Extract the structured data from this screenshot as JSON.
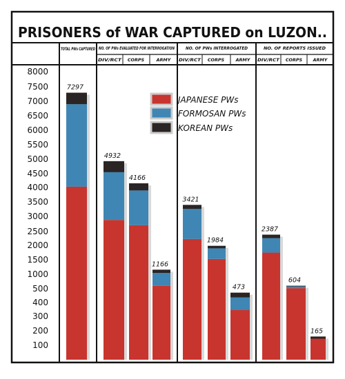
{
  "chart_data": {
    "type": "bar",
    "title": "PRISONERS of WAR CAPTURED on LUZON..",
    "y_ticks": [
      "8000",
      "7500",
      "7000",
      "6500",
      "6000",
      "5500",
      "5000",
      "4500",
      "4000",
      "3500",
      "3000",
      "2500",
      "2000",
      "1500",
      "1000",
      "500",
      "400",
      "300",
      "200",
      "100"
    ],
    "groups": [
      {
        "label": "TOTAL PWs CAPTURED",
        "sublabels": []
      },
      {
        "label": "NO. OF PWs EVALUATED FOR INTERROGATION",
        "sublabels": [
          "DIV/RCT",
          "CORPS",
          "ARMY"
        ]
      },
      {
        "label": "NO. OF PWs INTERROGATED",
        "sublabels": [
          "DIV/RCT",
          "CORPS",
          "ARMY"
        ]
      },
      {
        "label": "NO. OF REPORTS ISSUED",
        "sublabels": [
          "DIV/RCT",
          "CORPS",
          "ARMY"
        ]
      }
    ],
    "bars": [
      {
        "group": "TOTAL PWs CAPTURED",
        "category": "",
        "total": 7297,
        "japanese": 4050,
        "formosan": 2850,
        "korean": 397
      },
      {
        "group": "NO. OF PWs EVALUATED FOR INTERROGATION",
        "category": "DIV/RCT",
        "total": 4932,
        "japanese": 2900,
        "formosan": 1650,
        "korean": 382
      },
      {
        "group": "NO. OF PWs EVALUATED FOR INTERROGATION",
        "category": "CORPS",
        "total": 4166,
        "japanese": 2720,
        "formosan": 1200,
        "korean": 246
      },
      {
        "group": "NO. OF PWs EVALUATED FOR INTERROGATION",
        "category": "ARMY",
        "total": 1166,
        "japanese": 600,
        "formosan": 450,
        "korean": 116
      },
      {
        "group": "NO. OF PWs INTERROGATED",
        "category": "DIV/RCT",
        "total": 3421,
        "japanese": 2230,
        "formosan": 1050,
        "korean": 141
      },
      {
        "group": "NO. OF PWs INTERROGATED",
        "category": "CORPS",
        "total": 1984,
        "japanese": 1550,
        "formosan": 350,
        "korean": 84
      },
      {
        "group": "NO. OF PWs INTERROGATED",
        "category": "ARMY",
        "total": 473,
        "japanese": 350,
        "formosan": 90,
        "korean": 33
      },
      {
        "group": "NO. OF REPORTS ISSUED",
        "category": "DIV/RCT",
        "total": 2387,
        "japanese": 1760,
        "formosan": 500,
        "korean": 127
      },
      {
        "group": "NO. OF REPORTS ISSUED",
        "category": "CORPS",
        "total": 604,
        "japanese": 520,
        "formosan": 60,
        "korean": 24
      },
      {
        "group": "NO. OF REPORTS ISSUED",
        "category": "ARMY",
        "total": 165,
        "japanese": 150,
        "formosan": 0,
        "korean": 15
      }
    ],
    "series": [
      {
        "key": "japanese",
        "name": "JAPANESE PWs",
        "color": "#c8352e"
      },
      {
        "key": "formosan",
        "name": "FORMOSAN PWs",
        "color": "#3f86b4"
      },
      {
        "key": "korean",
        "name": "KOREAN PWs",
        "color": "#2a2524"
      }
    ],
    "grid": false,
    "legend_position": "top-center"
  }
}
